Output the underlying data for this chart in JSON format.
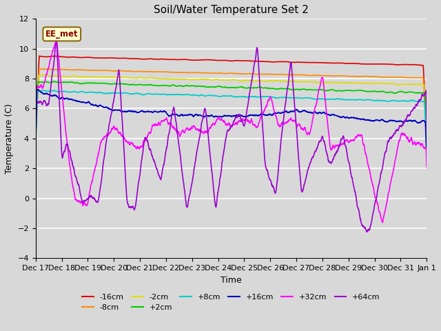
{
  "title": "Soil/Water Temperature Set 2",
  "xlabel": "Time",
  "ylabel": "Temperature (C)",
  "ylim": [
    -4,
    12
  ],
  "yticks": [
    -4,
    -2,
    0,
    2,
    4,
    6,
    8,
    10,
    12
  ],
  "bg_color": "#d8d8d8",
  "plot_bg_color": "#d8d8d8",
  "annotation_text": "EE_met",
  "annotation_bg": "#ffffcc",
  "annotation_border": "#8b4513",
  "lines": {
    "-16cm": {
      "color": "#dd0000"
    },
    "-8cm": {
      "color": "#ff8800"
    },
    "-2cm": {
      "color": "#dddd00"
    },
    "+2cm": {
      "color": "#00cc00"
    },
    "+8cm": {
      "color": "#00cccc"
    },
    "+16cm": {
      "color": "#0000bb"
    },
    "+32cm": {
      "color": "#ff00ff"
    },
    "+64cm": {
      "color": "#9900cc"
    }
  },
  "legend_order": [
    "-16cm",
    "-8cm",
    "-2cm",
    "+2cm",
    "+8cm",
    "+16cm",
    "+32cm",
    "+64cm"
  ],
  "xtick_labels": [
    "Dec 17",
    "Dec 18",
    "Dec 19",
    "Dec 20",
    "Dec 21",
    "Dec 22",
    "Dec 23",
    "Dec 24",
    "Dec 25",
    "Dec 26",
    "Dec 27",
    "Dec 28",
    "Dec 29",
    "Dec 30",
    "Dec 31",
    "Jan 1"
  ]
}
